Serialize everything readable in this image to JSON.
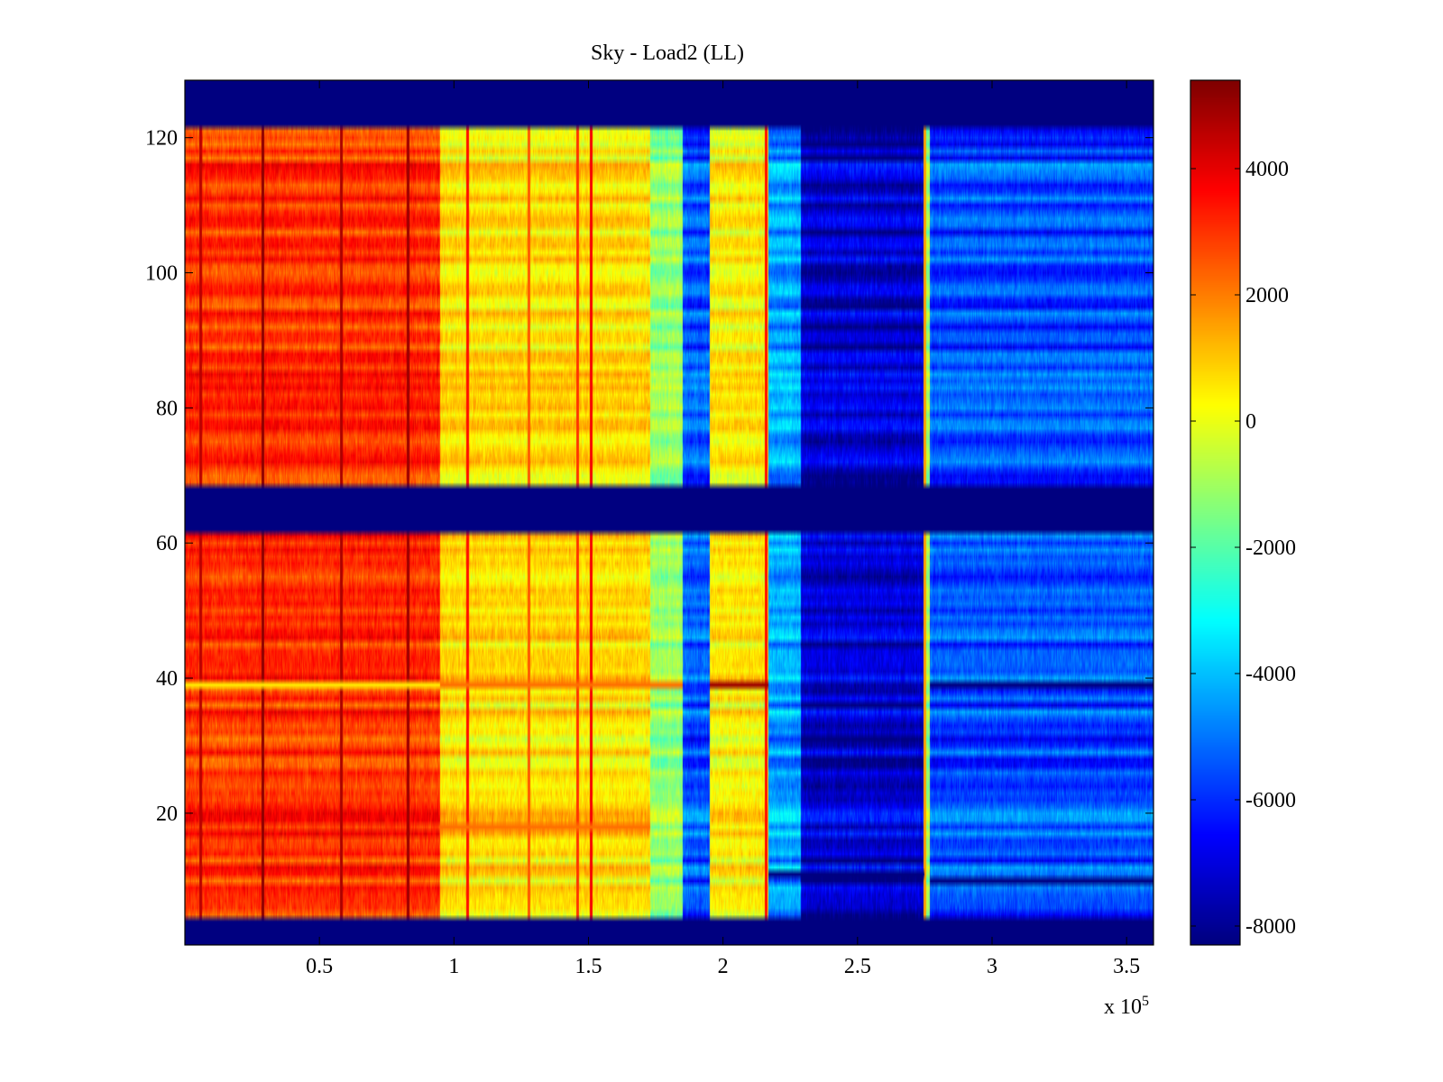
{
  "chart_data": {
    "type": "heatmap",
    "title": "Sky - Load2 (LL)",
    "xlabel": "",
    "ylabel": "",
    "x_multiplier_label": "x 10",
    "x_multiplier_exponent": "5",
    "xlim": [
      0,
      3.6
    ],
    "ylim": [
      0.5,
      128.5
    ],
    "x_ticks": [
      0.5,
      1,
      1.5,
      2,
      2.5,
      3,
      3.5
    ],
    "x_tick_labels": [
      "0.5",
      "1",
      "1.5",
      "2",
      "2.5",
      "3",
      "3.5"
    ],
    "y_ticks": [
      20,
      40,
      60,
      80,
      100,
      120
    ],
    "y_tick_labels": [
      "20",
      "40",
      "60",
      "80",
      "100",
      "120"
    ],
    "colormap": "jet",
    "clim": [
      -8300,
      5400
    ],
    "colorbar_ticks": [
      4000,
      2000,
      0,
      -2000,
      -4000,
      -6000,
      -8000
    ],
    "colorbar_tick_labels": [
      "4000",
      "2000",
      "0",
      "-2000",
      "-4000",
      "-6000",
      "-8000"
    ],
    "masked_row_ranges": [
      [
        1,
        4
      ],
      [
        62,
        68
      ],
      [
        122,
        128
      ]
    ],
    "masked_value": -8300,
    "column_segments": [
      {
        "x_start": 0.0,
        "x_end": 0.95,
        "value": 3000
      },
      {
        "x_start": 0.95,
        "x_end": 1.73,
        "value": 600
      },
      {
        "x_start": 1.73,
        "x_end": 1.85,
        "value": -1200
      },
      {
        "x_start": 1.85,
        "x_end": 1.95,
        "value": -5500
      },
      {
        "x_start": 1.95,
        "x_end": 2.17,
        "value": 400
      },
      {
        "x_start": 2.17,
        "x_end": 2.29,
        "value": -4500
      },
      {
        "x_start": 2.29,
        "x_end": 2.75,
        "value": -7300
      },
      {
        "x_start": 2.75,
        "x_end": 2.77,
        "value": -1000
      },
      {
        "x_start": 2.77,
        "x_end": 3.6,
        "value": -5600
      }
    ],
    "vertical_lines": [
      {
        "x": 0.06,
        "value": 4600
      },
      {
        "x": 0.29,
        "value": 5200
      },
      {
        "x": 0.58,
        "value": 4800
      },
      {
        "x": 0.83,
        "value": 5000
      },
      {
        "x": 1.05,
        "value": 3500
      },
      {
        "x": 1.28,
        "value": 2500
      },
      {
        "x": 1.46,
        "value": 3000
      },
      {
        "x": 1.51,
        "value": 3800
      },
      {
        "x": 2.16,
        "value": 3500
      },
      {
        "x": 2.75,
        "value": 1500
      }
    ],
    "row_anomalies": [
      {
        "row": 39,
        "x_start": 0.0,
        "x_end": 0.95,
        "value": 500
      },
      {
        "row": 39,
        "x_start": 0.95,
        "x_end": 1.85,
        "value": 2200
      },
      {
        "row": 39,
        "x_start": 1.95,
        "x_end": 2.17,
        "value": 5000
      },
      {
        "row": 39,
        "x_start": 2.77,
        "x_end": 3.6,
        "value": -8300
      },
      {
        "row": 18,
        "x_start": 0.95,
        "x_end": 1.73,
        "value": 2200
      },
      {
        "row": 11,
        "x_start": 2.17,
        "x_end": 2.75,
        "value": -8300
      },
      {
        "row": 10,
        "x_start": 2.77,
        "x_end": 3.6,
        "value": -8300
      }
    ]
  }
}
